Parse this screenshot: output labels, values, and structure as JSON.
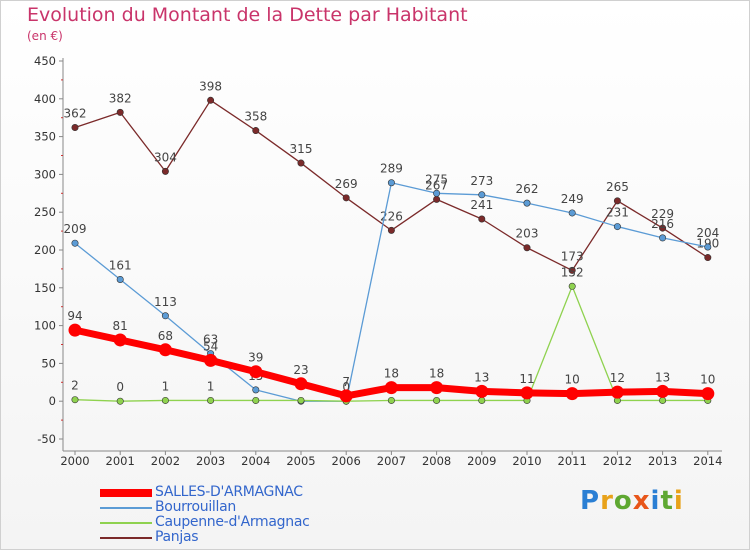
{
  "header": {
    "title": "Evolution du Montant de la Dette par Habitant",
    "subtitle": "(en €)"
  },
  "logo": {
    "letters": [
      "P",
      "r",
      "o",
      "x",
      "i",
      "t",
      "i"
    ],
    "colors": [
      "#2a7fd4",
      "#e8a21a",
      "#5fa832",
      "#e8561a",
      "#2a7fd4",
      "#5fa832",
      "#e8a21a"
    ]
  },
  "chart_data": {
    "type": "line",
    "x": [
      "2000",
      "2001",
      "2002",
      "2003",
      "2004",
      "2005",
      "2006",
      "2007",
      "2008",
      "2009",
      "2010",
      "2011",
      "2012",
      "2013",
      "2014"
    ],
    "ylim": [
      -50,
      450
    ],
    "yticks": [
      -50,
      0,
      50,
      100,
      150,
      200,
      250,
      300,
      350,
      400,
      450
    ],
    "grid": false,
    "legend_position": "bottom-left",
    "series": [
      {
        "name": "Panjas",
        "color": "#7b2a2a",
        "values": [
          362,
          382,
          304,
          398,
          358,
          315,
          269,
          226,
          267,
          241,
          203,
          173,
          265,
          229,
          190
        ],
        "labels": [
          "362",
          "382",
          "304",
          "398",
          "358",
          "315",
          "269",
          "226",
          "267",
          "241",
          "203",
          "173",
          "265",
          "229",
          "190"
        ]
      },
      {
        "name": "Bourrouillan",
        "color": "#5b9bd5",
        "values": [
          209,
          161,
          113,
          63,
          15,
          0,
          0,
          289,
          275,
          273,
          262,
          249,
          231,
          216,
          204
        ],
        "labels": [
          "209",
          "161",
          "113",
          "63",
          "15",
          "",
          "",
          "289",
          "275",
          "273",
          "262",
          "249",
          "231",
          "216",
          "204"
        ]
      },
      {
        "name": "Caupenne-d'Armagnac",
        "color": "#8fd24f",
        "values": [
          2,
          0,
          1,
          1,
          1,
          1,
          0,
          1,
          1,
          1,
          1,
          152,
          1,
          1,
          1
        ],
        "labels": [
          "2",
          "0",
          "1",
          "1",
          "",
          "",
          "0",
          "",
          "",
          "",
          "",
          "152",
          "",
          "",
          ""
        ]
      },
      {
        "name": "SALLES-D'ARMAGNAC",
        "color": "#ff0000",
        "values": [
          94,
          81,
          68,
          54,
          39,
          23,
          7,
          18,
          18,
          13,
          11,
          10,
          12,
          13,
          10
        ],
        "labels": [
          "94",
          "81",
          "68",
          "54",
          "39",
          "23",
          "7",
          "18",
          "18",
          "13",
          "11",
          "10",
          "12",
          "13",
          "10"
        ]
      }
    ],
    "legend": [
      "SALLES-D'ARMAGNAC",
      "Bourrouillan",
      "Caupenne-d'Armagnac",
      "Panjas"
    ]
  }
}
